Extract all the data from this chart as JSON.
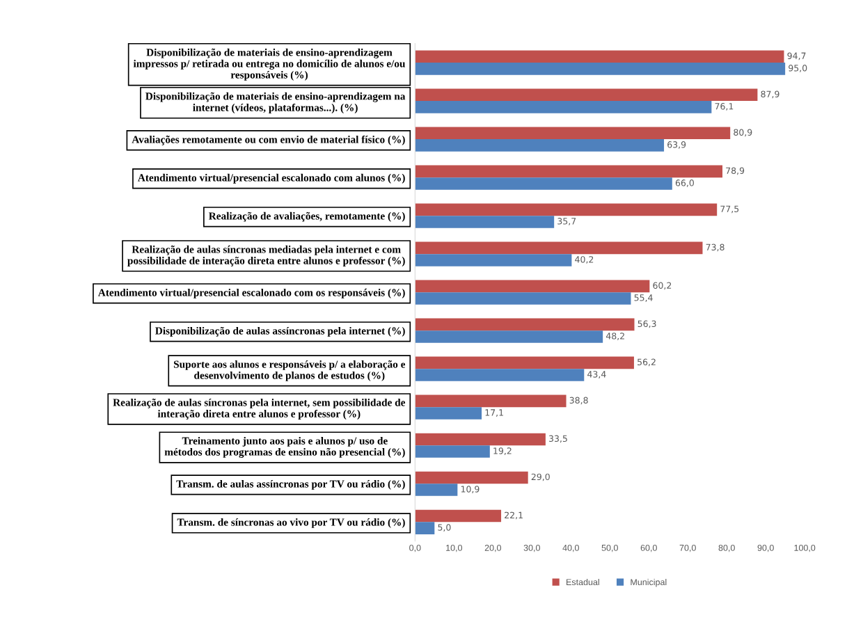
{
  "chart_data": {
    "type": "bar",
    "orientation": "horizontal",
    "categories": [
      "Disponibilização de materiais de ensino-aprendizagem\nimpressos p/ retirada ou entrega no domicílio de alunos e/ou\nresponsáveis (%)",
      "Disponibilização de materiais de ensino-aprendizagem na\ninternet (vídeos, plataformas...). (%)",
      "Avaliações remotamente ou com envio de material físico (%)",
      "Atendimento virtual/presencial escalonado com alunos (%)",
      "Realização de avaliações, remotamente (%)",
      "Realização de aulas síncronas mediadas pela internet e com\npossibilidade de interação direta entre alunos e professor (%)",
      "Atendimento virtual/presencial escalonado com os responsáveis (%)",
      "Disponibilização de aulas assíncronas pela internet (%)",
      "Suporte aos alunos e responsáveis p/ a elaboração e\ndesenvolvimento de planos de estudos (%)",
      "Realização de aulas síncronas pela internet, sem possibilidade de\ninteração direta entre alunos e professor (%)",
      "Treinamento junto aos pais e alunos p/ uso de\nmétodos dos programas de ensino não presencial (%)",
      "Transm. de aulas assíncronas por TV ou rádio (%)",
      "Transm. de síncronas ao vivo por TV ou rádio (%)"
    ],
    "series": [
      {
        "name": "Estadual",
        "color": "#c0504d",
        "values": [
          94.7,
          87.9,
          80.9,
          78.9,
          77.5,
          73.8,
          60.2,
          56.3,
          56.2,
          38.8,
          33.5,
          29.0,
          22.1
        ],
        "value_labels": [
          "94,7",
          "87,9",
          "80,9",
          "78,9",
          "77,5",
          "73,8",
          "60,2",
          "56,3",
          "56,2",
          "38,8",
          "33,5",
          "29,0",
          "22,1"
        ]
      },
      {
        "name": "Municipal",
        "color": "#4f81bd",
        "values": [
          95.0,
          76.1,
          63.9,
          66.0,
          35.7,
          40.2,
          55.4,
          48.2,
          43.4,
          17.1,
          19.2,
          10.9,
          5.0
        ],
        "value_labels": [
          "95,0",
          "76,1",
          "63,9",
          "66,0",
          "35,7",
          "40,2",
          "55,4",
          "48,2",
          "43,4",
          "17,1",
          "19,2",
          "10,9",
          "5,0"
        ]
      }
    ],
    "xlim": [
      0,
      100
    ],
    "xticks": [
      {
        "value": 0,
        "label": "0,0"
      },
      {
        "value": 10,
        "label": "10,0"
      },
      {
        "value": 20,
        "label": "20,0"
      },
      {
        "value": 30,
        "label": "30,0"
      },
      {
        "value": 40,
        "label": "40,0"
      },
      {
        "value": 50,
        "label": "50,0"
      },
      {
        "value": 60,
        "label": "60,0"
      },
      {
        "value": 70,
        "label": "70,0"
      },
      {
        "value": 80,
        "label": "80,0"
      },
      {
        "value": 90,
        "label": "90,0"
      },
      {
        "value": 100,
        "label": "100,0"
      }
    ],
    "legend": "bottom",
    "grid": false
  }
}
